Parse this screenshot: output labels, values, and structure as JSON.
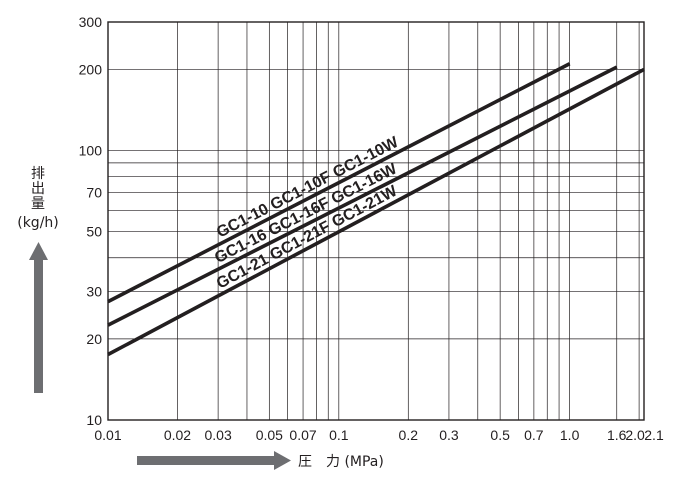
{
  "chart_data": {
    "type": "line",
    "xscale": "log",
    "yscale": "log",
    "xlim": [
      0.01,
      2.1
    ],
    "ylim": [
      10,
      300
    ],
    "grid": true,
    "xlabel": "圧　力 (MPa)",
    "ylabel_text": "排出量",
    "ylabel_unit": "(kg/h)",
    "x_ticks": [
      0.01,
      0.02,
      0.03,
      0.05,
      0.07,
      0.1,
      0.2,
      0.3,
      0.5,
      0.7,
      1.0,
      1.6,
      2.0,
      2.1
    ],
    "x_tick_labels": [
      "0.01",
      "0.02",
      "0.03",
      "0.05",
      "0.07",
      "0.1",
      "0.2",
      "0.3",
      "0.5",
      "0.7",
      "1.0",
      "1.6",
      "2.0",
      "2.1"
    ],
    "y_ticks": [
      10,
      20,
      30,
      50,
      70,
      100,
      200,
      300
    ],
    "y_tick_labels": [
      "10",
      "20",
      "30",
      "50",
      "70",
      "100",
      "200",
      "300"
    ],
    "series": [
      {
        "name": "GC1-10  GC1-10F  GC1-10W",
        "x": [
          0.01,
          1.0
        ],
        "y": [
          27.5,
          210
        ]
      },
      {
        "name": "GC1-16  GC1-16F  GC1-16W",
        "x": [
          0.01,
          1.6
        ],
        "y": [
          22.5,
          204
        ]
      },
      {
        "name": "GC1-21  GC1-21F  GC1-21W",
        "x": [
          0.01,
          2.1
        ],
        "y": [
          17.5,
          200
        ]
      }
    ]
  },
  "colors": {
    "line": "#231f20",
    "grid": "#231f20",
    "arrow": "#6d6e71"
  }
}
